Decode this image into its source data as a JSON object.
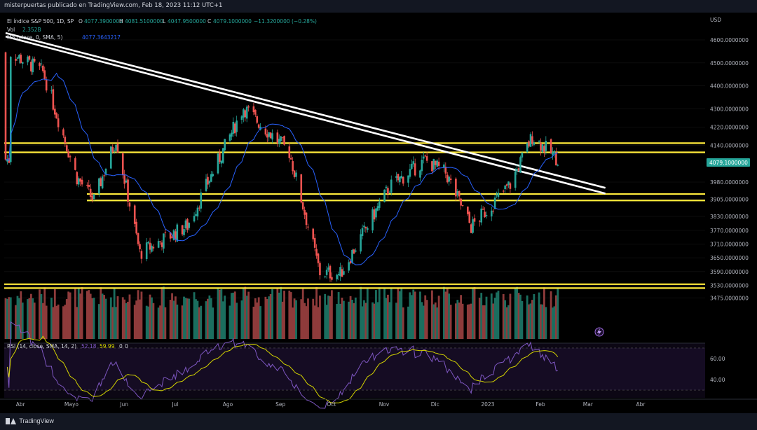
{
  "header": {
    "publisher": "misterpuertas publicado en TradingView.com, Feb 18, 2023 11:12 UTC+1"
  },
  "legend": {
    "symbol": "El índice S&P 500, 1D, SP",
    "open_label": "O",
    "open": "4077.3900000",
    "high_label": "H",
    "high": "4081.5100000",
    "low_label": "L",
    "low": "4047.9500000",
    "close_label": "C",
    "close": "4079.1000000",
    "change": "−11.3200000 (−0.28%)",
    "vol_label": "Vol",
    "vol": "2.352B",
    "ma_label": "MA (close, 0, SMA, 5)",
    "ma": "4077.3643217"
  },
  "rsi_legend": {
    "label": "RSI (14, close, SMA, 14, 2)",
    "rsi": "52.18",
    "rsi_ma": "59.99",
    "extra1": "0",
    "extra2": "0"
  },
  "price_tag": "4079.1000000",
  "footer": {
    "brand": "TradingView"
  },
  "colors": {
    "up": "#26a69a",
    "down": "#ef5350",
    "ma": "#2962ff",
    "hline": "#ffeb3b",
    "trend": "#ffffff",
    "rsi": "#7e57c2",
    "rsi_ma": "#d4d400",
    "tag": "#26a69a",
    "flash": "#7e57c2"
  },
  "chart_data": {
    "type": "candlestick",
    "title": "El índice S&P 500, 1D, SP",
    "currency": "USD",
    "x_axis": {
      "labels": [
        "Abr",
        "Mayo",
        "Jun",
        "Jul",
        "Ago",
        "Sep",
        "Oct",
        "Nov",
        "Dic",
        "2023",
        "Feb",
        "Mar",
        "Abr"
      ]
    },
    "y_axis": {
      "ticks": [
        4600,
        4500,
        4400,
        4300,
        4220,
        4140,
        3980,
        3905,
        3830,
        3770,
        3710,
        3650,
        3590,
        3530,
        3475
      ],
      "tick_labels": [
        "4600.0000000",
        "4500.0000000",
        "4400.0000000",
        "4300.0000000",
        "4220.0000000",
        "4140.0000000",
        "3980.0000000",
        "3905.0000000",
        "3830.0000000",
        "3770.0000000",
        "3710.0000000",
        "3650.0000000",
        "3590.0000000",
        "3530.0000000",
        "3475.0000000"
      ],
      "unit_label": "USD"
    },
    "approximate_close_path": [
      {
        "date": "2022-04-01",
        "close": 4545
      },
      {
        "date": "2022-04-20",
        "close": 4460
      },
      {
        "date": "2022-05-10",
        "close": 4000
      },
      {
        "date": "2022-05-20",
        "close": 3900
      },
      {
        "date": "2022-06-02",
        "close": 4170
      },
      {
        "date": "2022-06-16",
        "close": 3670
      },
      {
        "date": "2022-07-14",
        "close": 3790
      },
      {
        "date": "2022-08-16",
        "close": 4305
      },
      {
        "date": "2022-09-12",
        "close": 4110
      },
      {
        "date": "2022-09-30",
        "close": 3585
      },
      {
        "date": "2022-10-12",
        "close": 3580
      },
      {
        "date": "2022-11-10",
        "close": 3960
      },
      {
        "date": "2022-12-01",
        "close": 4075
      },
      {
        "date": "2022-12-13",
        "close": 4020
      },
      {
        "date": "2022-12-28",
        "close": 3785
      },
      {
        "date": "2023-01-20",
        "close": 3970
      },
      {
        "date": "2023-02-02",
        "close": 4180
      },
      {
        "date": "2023-02-17",
        "close": 4079
      }
    ],
    "horizontal_levels": [
      4150,
      4110,
      3928,
      3900,
      3535,
      3518
    ],
    "trendlines": [
      {
        "from": {
          "date": "2022-03-29",
          "price": 4630
        },
        "to": {
          "date": "2023-03-17",
          "price": 3955
        }
      },
      {
        "from": {
          "date": "2022-03-29",
          "price": 4615
        },
        "to": {
          "date": "2023-03-17",
          "price": 3930
        }
      }
    ],
    "last_close": 4079.1,
    "rsi": {
      "ticks": [
        60.0,
        40.0
      ],
      "tick_labels": [
        "60.00",
        "40.00"
      ],
      "last_rsi": 52.18,
      "last_rsi_ma": 59.99
    }
  }
}
